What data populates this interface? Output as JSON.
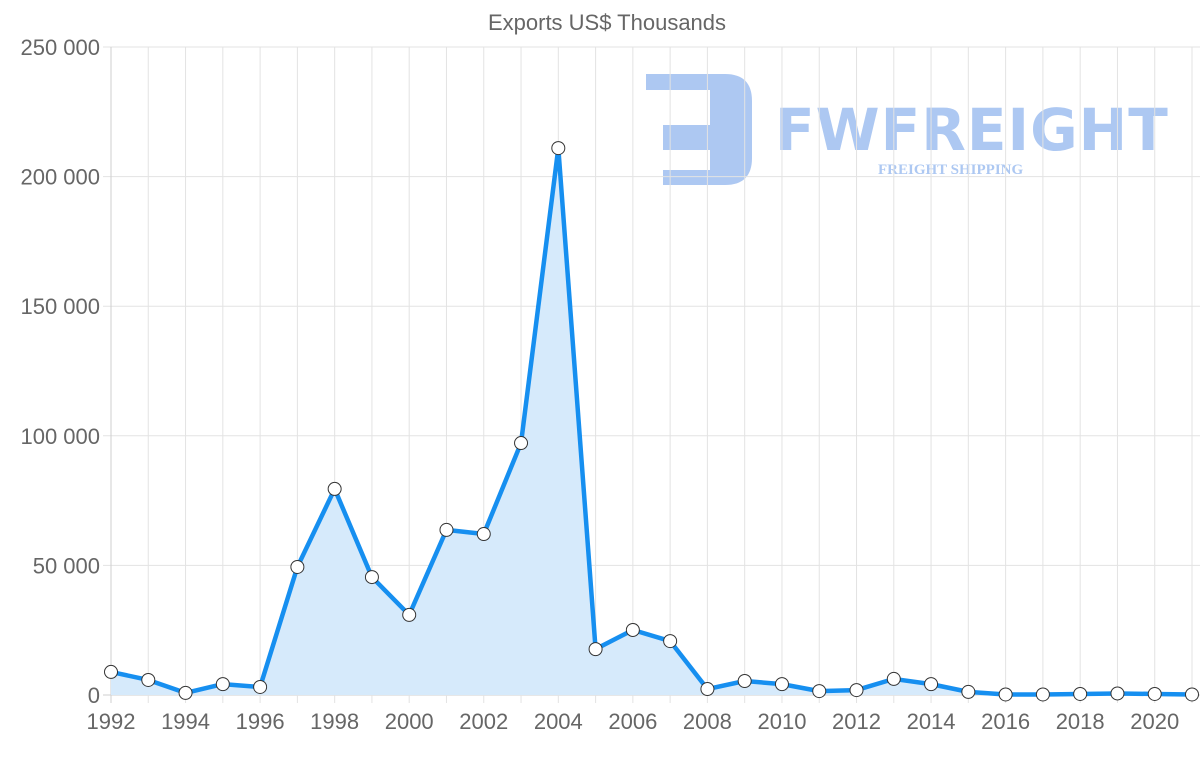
{
  "chart_data": {
    "type": "line",
    "title": "Exports US$ Thousands",
    "xlabel": "",
    "ylabel": "",
    "x": [
      1992,
      1993,
      1994,
      1995,
      1996,
      1997,
      1998,
      1999,
      2000,
      2001,
      2002,
      2003,
      2004,
      2005,
      2006,
      2007,
      2008,
      2009,
      2010,
      2011,
      2012,
      2013,
      2014,
      2015,
      2016,
      2017,
      2018,
      2019,
      2020,
      2021
    ],
    "series": [
      {
        "name": "Exports US$ Thousands",
        "values": [
          8900,
          5800,
          800,
          4200,
          3100,
          49400,
          79500,
          45500,
          30900,
          63700,
          62100,
          97200,
          211000,
          17700,
          25100,
          20800,
          2300,
          5400,
          4200,
          1500,
          1900,
          6200,
          4200,
          1200,
          200,
          200,
          400,
          600,
          400,
          200
        ],
        "color": "#168ff0",
        "fill": "#d6eafb"
      }
    ],
    "ylim": [
      0,
      250000
    ],
    "yticks": [
      0,
      50000,
      100000,
      150000,
      200000,
      250000
    ],
    "ytick_labels": [
      "0",
      "50 000",
      "100 000",
      "150 000",
      "200 000",
      "250 000"
    ],
    "xtick_labels": [
      "1992",
      "1994",
      "1996",
      "1998",
      "2000",
      "2002",
      "2004",
      "2006",
      "2008",
      "2010",
      "2012",
      "2014",
      "2016",
      "2018",
      "2020"
    ],
    "grid": true,
    "legend": null,
    "area_fill": true,
    "markers": "white-circle"
  },
  "watermark": {
    "brand": "FWFREIGHT",
    "tagline": "FREIGHT SHIPPING",
    "color": "#adc8f2"
  }
}
